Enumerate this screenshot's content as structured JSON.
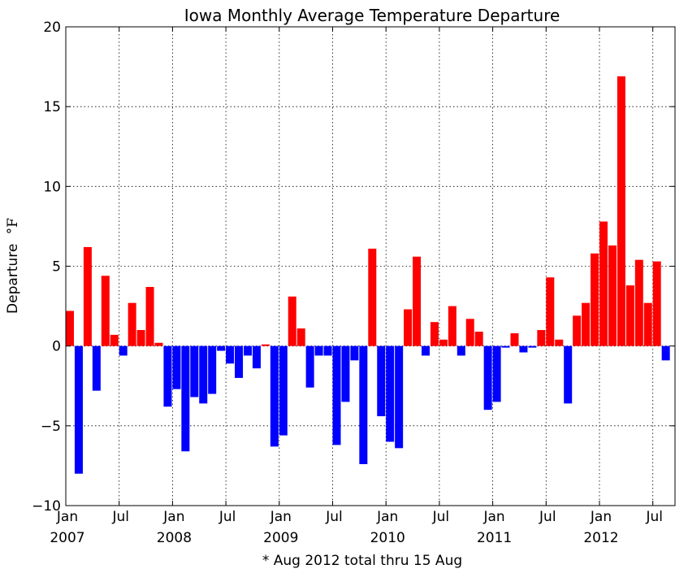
{
  "chart_data": {
    "type": "bar",
    "title": "Iowa Monthly Average Temperature Departure",
    "ylabel": "Departure °F",
    "ylabel_parts": {
      "word": "Departure",
      "unit": "°F"
    },
    "footnote": "* Aug 2012 total thru 15 Aug",
    "ylim": [
      -10,
      20
    ],
    "yticks": [
      -10,
      -5,
      0,
      5,
      10,
      15,
      20
    ],
    "ytick_labels": [
      "−10",
      "−5",
      "0",
      "5",
      "10",
      "15",
      "20"
    ],
    "grid": true,
    "colors": {
      "positive": "#ff0000",
      "negative": "#0000ff"
    },
    "xticks": [
      {
        "month_index": 0,
        "label": "Jan",
        "year": "2007"
      },
      {
        "month_index": 6,
        "label": "Jul",
        "year": ""
      },
      {
        "month_index": 12,
        "label": "Jan",
        "year": "2008"
      },
      {
        "month_index": 18,
        "label": "Jul",
        "year": ""
      },
      {
        "month_index": 24,
        "label": "Jan",
        "year": "2009"
      },
      {
        "month_index": 30,
        "label": "Jul",
        "year": ""
      },
      {
        "month_index": 36,
        "label": "Jan",
        "year": "2010"
      },
      {
        "month_index": 42,
        "label": "Jul",
        "year": ""
      },
      {
        "month_index": 48,
        "label": "Jan",
        "year": "2011"
      },
      {
        "month_index": 54,
        "label": "Jul",
        "year": ""
      },
      {
        "month_index": 60,
        "label": "Jan",
        "year": "2012"
      },
      {
        "month_index": 66,
        "label": "Jul",
        "year": ""
      }
    ],
    "months": [
      "2007-01",
      "2007-02",
      "2007-03",
      "2007-04",
      "2007-05",
      "2007-06",
      "2007-07",
      "2007-08",
      "2007-09",
      "2007-10",
      "2007-11",
      "2007-12",
      "2008-01",
      "2008-02",
      "2008-03",
      "2008-04",
      "2008-05",
      "2008-06",
      "2008-07",
      "2008-08",
      "2008-09",
      "2008-10",
      "2008-11",
      "2008-12",
      "2009-01",
      "2009-02",
      "2009-03",
      "2009-04",
      "2009-05",
      "2009-06",
      "2009-07",
      "2009-08",
      "2009-09",
      "2009-10",
      "2009-11",
      "2009-12",
      "2010-01",
      "2010-02",
      "2010-03",
      "2010-04",
      "2010-05",
      "2010-06",
      "2010-07",
      "2010-08",
      "2010-09",
      "2010-10",
      "2010-11",
      "2010-12",
      "2011-01",
      "2011-02",
      "2011-03",
      "2011-04",
      "2011-05",
      "2011-06",
      "2011-07",
      "2011-08",
      "2011-09",
      "2011-10",
      "2011-11",
      "2011-12",
      "2012-01",
      "2012-02",
      "2012-03",
      "2012-04",
      "2012-05",
      "2012-06",
      "2012-07",
      "2012-08"
    ],
    "values": [
      2.2,
      -8.0,
      6.2,
      -2.8,
      4.4,
      0.7,
      -0.6,
      2.7,
      1.0,
      3.7,
      0.2,
      -3.8,
      -2.7,
      -6.6,
      -3.2,
      -3.6,
      -3.0,
      -0.3,
      -1.1,
      -2.0,
      -0.6,
      -1.4,
      0.1,
      -6.3,
      -5.6,
      3.1,
      1.1,
      -2.6,
      -0.6,
      -0.6,
      -6.2,
      -3.5,
      -0.9,
      -7.4,
      6.1,
      -4.4,
      -6.0,
      -6.4,
      2.3,
      5.6,
      -0.6,
      1.5,
      0.4,
      2.5,
      -0.6,
      1.7,
      0.9,
      -4.0,
      -3.5,
      -0.1,
      0.8,
      -0.4,
      -0.1,
      1.0,
      4.3,
      0.4,
      -3.6,
      1.9,
      2.7,
      5.8,
      7.8,
      6.3,
      16.9,
      3.8,
      5.4,
      2.7,
      5.3,
      -0.9
    ]
  }
}
